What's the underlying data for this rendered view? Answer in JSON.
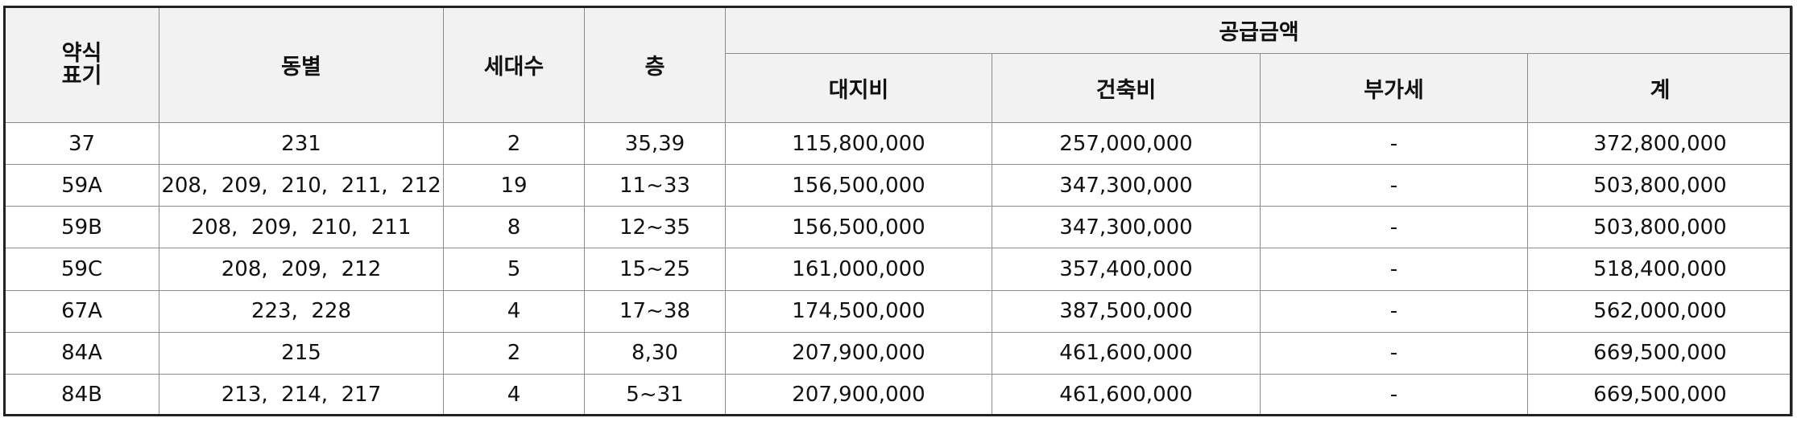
{
  "table": {
    "headers": {
      "abbr": "약식\n표기",
      "abbr_line1": "약식",
      "abbr_line2": "표기",
      "buildings": "동별",
      "households": "세대수",
      "floors": "층",
      "supply_amount": "공급금액",
      "land_cost": "대지비",
      "construction_cost": "건축비",
      "vat": "부가세",
      "total": "계"
    },
    "rows": [
      {
        "abbr": "37",
        "buildings": "231",
        "households": "2",
        "floors": "35,39",
        "land_cost": "115,800,000",
        "construction_cost": "257,000,000",
        "vat": "-",
        "total": "372,800,000"
      },
      {
        "abbr": "59A",
        "buildings": "208,  209,  210,  211,  212",
        "households": "19",
        "floors": "11~33",
        "land_cost": "156,500,000",
        "construction_cost": "347,300,000",
        "vat": "-",
        "total": "503,800,000"
      },
      {
        "abbr": "59B",
        "buildings": "208,  209,  210,  211",
        "households": "8",
        "floors": "12~35",
        "land_cost": "156,500,000",
        "construction_cost": "347,300,000",
        "vat": "-",
        "total": "503,800,000"
      },
      {
        "abbr": "59C",
        "buildings": "208,  209,  212",
        "households": "5",
        "floors": "15~25",
        "land_cost": "161,000,000",
        "construction_cost": "357,400,000",
        "vat": "-",
        "total": "518,400,000"
      },
      {
        "abbr": "67A",
        "buildings": "223,  228",
        "households": "4",
        "floors": "17~38",
        "land_cost": "174,500,000",
        "construction_cost": "387,500,000",
        "vat": "-",
        "total": "562,000,000"
      },
      {
        "abbr": "84A",
        "buildings": "215",
        "households": "2",
        "floors": "8,30",
        "land_cost": "207,900,000",
        "construction_cost": "461,600,000",
        "vat": "-",
        "total": "669,500,000"
      },
      {
        "abbr": "84B",
        "buildings": "213,  214,  217",
        "households": "4",
        "floors": "5~31",
        "land_cost": "207,900,000",
        "construction_cost": "461,600,000",
        "vat": "-",
        "total": "669,500,000"
      }
    ]
  }
}
